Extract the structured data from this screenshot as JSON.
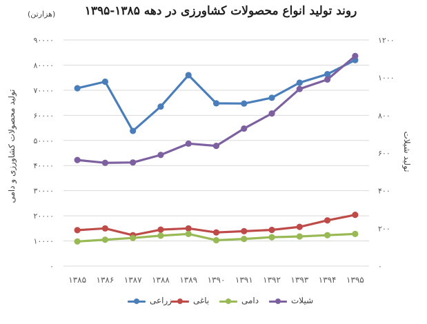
{
  "colors": {
    "zeraei": "#4a7ebb",
    "baghi": "#be4b48",
    "dami": "#98b954",
    "shilat": "#7d60a0",
    "grid": "#d9d9d9",
    "text": "#595959"
  },
  "chart_data": {
    "type": "line",
    "title": "روند تولید انواع محصولات کشاورزی در دهه ۱۳۸۵-۱۳۹۵",
    "unit": "(هزارتن)",
    "ylabel": "تولید محصولات کشاورزی و دامی",
    "y2label": "تولید شیلات",
    "categories": [
      "۱۳۸۵",
      "۱۳۸۶",
      "۱۳۸۷",
      "۱۳۸۸",
      "۱۳۸۹",
      "۱۳۹۰",
      "۱۳۹۱",
      "۱۳۹۲",
      "۱۳۹۳",
      "۱۳۹۴",
      "۱۳۹۵"
    ],
    "ylim": [
      0,
      90000
    ],
    "y2lim": [
      0,
      1200
    ],
    "yticks": [
      "0",
      "10000",
      "20000",
      "30000",
      "40000",
      "50000",
      "60000",
      "70000",
      "80000",
      "90000"
    ],
    "y2ticks": [
      "0",
      "200",
      "400",
      "600",
      "800",
      "1000",
      "1200"
    ],
    "grid": true,
    "legend": "bottom",
    "series": [
      {
        "name": "زراعی",
        "axis": "left",
        "color": "#4a7ebb",
        "values": [
          70800,
          73400,
          53800,
          63500,
          76000,
          64800,
          64700,
          67000,
          73000,
          76400,
          82000
        ]
      },
      {
        "name": "باغی",
        "axis": "left",
        "color": "#be4b48",
        "values": [
          14300,
          15000,
          12300,
          14500,
          15000,
          13400,
          13900,
          14400,
          15600,
          18200,
          20400
        ]
      },
      {
        "name": "دامی",
        "axis": "left",
        "color": "#98b954",
        "values": [
          9800,
          10500,
          11200,
          12100,
          12800,
          10300,
          10800,
          11500,
          11800,
          12300,
          12800
        ]
      },
      {
        "name": "شیلات",
        "axis": "right",
        "color": "#7d60a0",
        "values": [
          563,
          548,
          550,
          590,
          650,
          638,
          730,
          810,
          940,
          990,
          1115
        ]
      }
    ]
  },
  "legend_items": [
    "زراعی",
    "باغی",
    "دامی",
    "شیلات"
  ]
}
